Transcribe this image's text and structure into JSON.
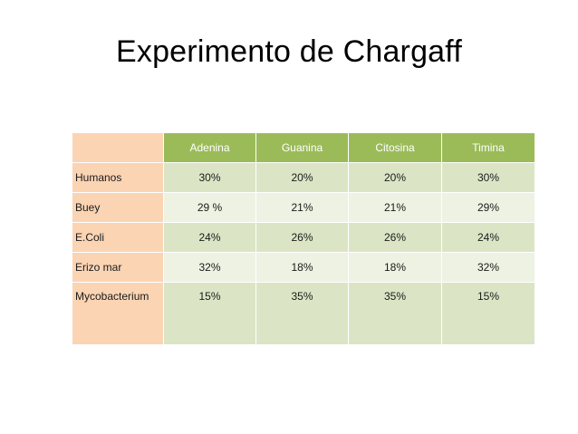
{
  "slide": {
    "title": "Experimento de Chargaff"
  },
  "table": {
    "headers": [
      "",
      "Adenina",
      "Guanina",
      "Citosina",
      "Timina"
    ],
    "rows": [
      {
        "label": "Humanos",
        "values": [
          "30%",
          "20%",
          "20%",
          "30%"
        ]
      },
      {
        "label": "Buey",
        "values": [
          "29 %",
          "21%",
          "21%",
          "29%"
        ]
      },
      {
        "label": "E.Coli",
        "values": [
          "24%",
          "26%",
          "26%",
          "24%"
        ]
      },
      {
        "label": "Erizo mar",
        "values": [
          "32%",
          "18%",
          "18%",
          "32%"
        ]
      },
      {
        "label": "Mycobacterium",
        "values": [
          "15%",
          "35%",
          "35%",
          "15%"
        ]
      }
    ]
  },
  "colors": {
    "header_green": "#9bbb59",
    "label_peach": "#fbd4b4",
    "row_band_dark": "#dbe5c5",
    "row_band_light": "#edf2e2"
  }
}
